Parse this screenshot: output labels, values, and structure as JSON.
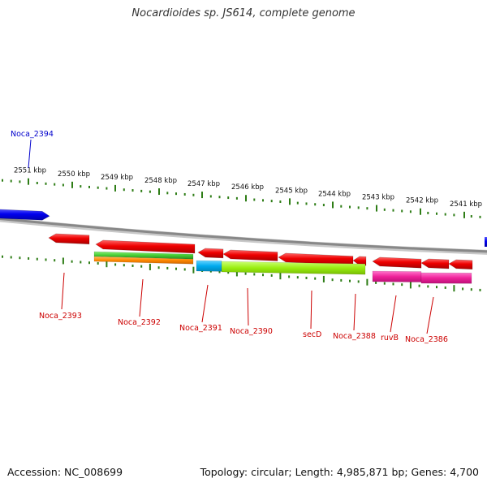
{
  "title": "Nocardioides sp. JS614, complete genome",
  "footer": {
    "accession": "Accession: NC_008699",
    "topology": "Topology: circular; Length: 4,985,871 bp; Genes: 4,700"
  },
  "colors": {
    "backbone": "#888888",
    "tick": "#2e7d16",
    "tick_label": "#111111",
    "gene_label_fwd": "#0000cc",
    "gene_label_rev": "#cc0000",
    "cds_red": "#ee0000",
    "forward_blue": "#0000ee"
  },
  "ticks": [
    {
      "label": "2551 kbp",
      "major": true
    },
    {
      "label": "2550 kbp",
      "major": true
    },
    {
      "label": "2549 kbp",
      "major": true
    },
    {
      "label": "2548 kbp",
      "major": true
    },
    {
      "label": "2547 kbp",
      "major": true
    },
    {
      "label": "2546 kbp",
      "major": true
    },
    {
      "label": "2545 kbp",
      "major": true
    },
    {
      "label": "2544 kbp",
      "major": true
    },
    {
      "label": "2543 kbp",
      "major": true
    },
    {
      "label": "2542 kbp",
      "major": true
    },
    {
      "label": "2541 kbp",
      "major": true
    }
  ],
  "genes": [
    {
      "name": "Noca_2394",
      "strand": "+",
      "color": "#0000ee"
    },
    {
      "name": "Noca_2393",
      "strand": "-",
      "color": "#ee0000"
    },
    {
      "name": "Noca_2392",
      "strand": "-",
      "color": "#ee0000"
    },
    {
      "name": "Noca_2391",
      "strand": "-",
      "color": "#ee0000"
    },
    {
      "name": "Noca_2390",
      "strand": "-",
      "color": "#ee0000"
    },
    {
      "name": "secD",
      "strand": "-",
      "color": "#ee0000"
    },
    {
      "name": "Noca_2388",
      "strand": "-",
      "color": "#ee0000"
    },
    {
      "name": "ruvB",
      "strand": "-",
      "color": "#ee0000"
    },
    {
      "name": "Noca_2386",
      "strand": "-",
      "color": "#ee0000"
    }
  ],
  "domains": [
    {
      "gene": "Noca_2392",
      "color": "#44cc33"
    },
    {
      "gene": "Noca_2392",
      "color": "#ff8800"
    },
    {
      "gene": "Noca_2391",
      "color": "#00aaee"
    },
    {
      "gene": "Noca_2390",
      "color": "#99ee11"
    },
    {
      "gene": "secD",
      "color": "#99ee11"
    },
    {
      "gene": "ruvB",
      "color": "#ee2299"
    },
    {
      "gene": "Noca_2386",
      "color": "#ee2299"
    }
  ]
}
